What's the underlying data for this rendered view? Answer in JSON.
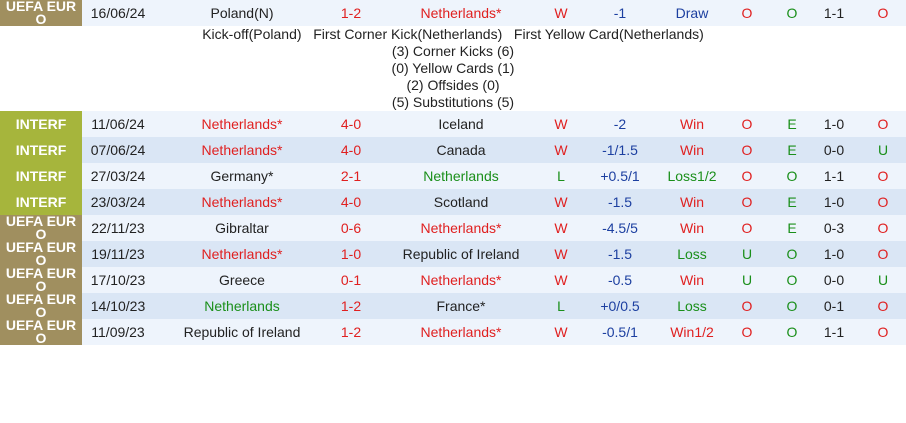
{
  "match_detail": {
    "lines": [
      "Kick-off(Poland)   First Corner Kick(Netherlands)   First Yellow Card(Netherlands)",
      "(3) Corner Kicks (6)",
      "(0) Yellow Cards (1)",
      "(2) Offsides (0)",
      "(5) Substitutions (5)"
    ],
    "after_row": 0
  },
  "rows": [
    {
      "badge_color": "#a08f5f",
      "cells": [
        "UEFA EURO",
        "16/06/24",
        "Poland(N)",
        "1-2",
        "Netherlands*",
        "W",
        "-1",
        "Draw",
        "O",
        "O",
        "1-1",
        "O"
      ],
      "colors": [
        "#ffffff",
        "#222222",
        "#222222",
        "#e02020",
        "#e02020",
        "#e02020",
        "#1c3fa0",
        "#1c3fa0",
        "#e02020",
        "#1a8f1a",
        "#222222",
        "#e02020"
      ]
    },
    {
      "badge_color": "#a6b53c",
      "cells": [
        "INTERF",
        "11/06/24",
        "Netherlands*",
        "4-0",
        "Iceland",
        "W",
        "-2",
        "Win",
        "O",
        "E",
        "1-0",
        "O"
      ],
      "colors": [
        "#ffffff",
        "#222222",
        "#e02020",
        "#e02020",
        "#222222",
        "#e02020",
        "#1c3fa0",
        "#e02020",
        "#e02020",
        "#1a8f1a",
        "#222222",
        "#e02020"
      ]
    },
    {
      "badge_color": "#a6b53c",
      "cells": [
        "INTERF",
        "07/06/24",
        "Netherlands*",
        "4-0",
        "Canada",
        "W",
        "-1/1.5",
        "Win",
        "O",
        "E",
        "0-0",
        "U"
      ],
      "colors": [
        "#ffffff",
        "#222222",
        "#e02020",
        "#e02020",
        "#222222",
        "#e02020",
        "#1c3fa0",
        "#e02020",
        "#e02020",
        "#1a8f1a",
        "#222222",
        "#1a8f1a"
      ]
    },
    {
      "badge_color": "#a6b53c",
      "cells": [
        "INTERF",
        "27/03/24",
        "Germany*",
        "2-1",
        "Netherlands",
        "L",
        "+0.5/1",
        "Loss1/2",
        "O",
        "O",
        "1-1",
        "O"
      ],
      "colors": [
        "#ffffff",
        "#222222",
        "#222222",
        "#e02020",
        "#1a8f1a",
        "#1a8f1a",
        "#1c3fa0",
        "#1a8f1a",
        "#e02020",
        "#1a8f1a",
        "#222222",
        "#e02020"
      ]
    },
    {
      "badge_color": "#a6b53c",
      "cells": [
        "INTERF",
        "23/03/24",
        "Netherlands*",
        "4-0",
        "Scotland",
        "W",
        "-1.5",
        "Win",
        "O",
        "E",
        "1-0",
        "O"
      ],
      "colors": [
        "#ffffff",
        "#222222",
        "#e02020",
        "#e02020",
        "#222222",
        "#e02020",
        "#1c3fa0",
        "#e02020",
        "#e02020",
        "#1a8f1a",
        "#222222",
        "#e02020"
      ]
    },
    {
      "badge_color": "#a08f5f",
      "cells": [
        "UEFA EURO",
        "22/11/23",
        "Gibraltar",
        "0-6",
        "Netherlands*",
        "W",
        "-4.5/5",
        "Win",
        "O",
        "E",
        "0-3",
        "O"
      ],
      "colors": [
        "#ffffff",
        "#222222",
        "#222222",
        "#e02020",
        "#e02020",
        "#e02020",
        "#1c3fa0",
        "#e02020",
        "#e02020",
        "#1a8f1a",
        "#222222",
        "#e02020"
      ]
    },
    {
      "badge_color": "#a08f5f",
      "cells": [
        "UEFA EURO",
        "19/11/23",
        "Netherlands*",
        "1-0",
        "Republic of Ireland",
        "W",
        "-1.5",
        "Loss",
        "U",
        "O",
        "1-0",
        "O"
      ],
      "colors": [
        "#ffffff",
        "#222222",
        "#e02020",
        "#e02020",
        "#222222",
        "#e02020",
        "#1c3fa0",
        "#1a8f1a",
        "#1a8f1a",
        "#1a8f1a",
        "#222222",
        "#e02020"
      ]
    },
    {
      "badge_color": "#a08f5f",
      "cells": [
        "UEFA EURO",
        "17/10/23",
        "Greece",
        "0-1",
        "Netherlands*",
        "W",
        "-0.5",
        "Win",
        "U",
        "O",
        "0-0",
        "U"
      ],
      "colors": [
        "#ffffff",
        "#222222",
        "#222222",
        "#e02020",
        "#e02020",
        "#e02020",
        "#1c3fa0",
        "#e02020",
        "#1a8f1a",
        "#1a8f1a",
        "#222222",
        "#1a8f1a"
      ]
    },
    {
      "badge_color": "#a08f5f",
      "cells": [
        "UEFA EURO",
        "14/10/23",
        "Netherlands",
        "1-2",
        "France*",
        "L",
        "+0/0.5",
        "Loss",
        "O",
        "O",
        "0-1",
        "O"
      ],
      "colors": [
        "#ffffff",
        "#222222",
        "#1a8f1a",
        "#e02020",
        "#222222",
        "#1a8f1a",
        "#1c3fa0",
        "#1a8f1a",
        "#e02020",
        "#1a8f1a",
        "#222222",
        "#e02020"
      ]
    },
    {
      "badge_color": "#a08f5f",
      "cells": [
        "UEFA EURO",
        "11/09/23",
        "Republic of Ireland",
        "1-2",
        "Netherlands*",
        "W",
        "-0.5/1",
        "Win1/2",
        "O",
        "O",
        "1-1",
        "O"
      ],
      "colors": [
        "#ffffff",
        "#222222",
        "#222222",
        "#e02020",
        "#e02020",
        "#e02020",
        "#1c3fa0",
        "#e02020",
        "#e02020",
        "#1a8f1a",
        "#222222",
        "#e02020"
      ]
    }
  ]
}
